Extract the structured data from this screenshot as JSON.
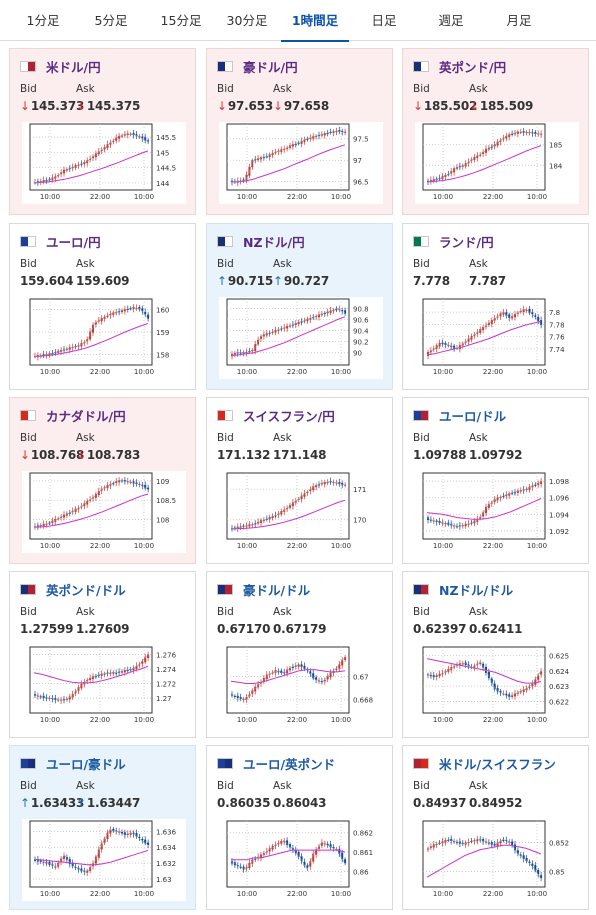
{
  "tabs": [
    {
      "label": "1分足"
    },
    {
      "label": "5分足"
    },
    {
      "label": "15分足"
    },
    {
      "label": "30分足"
    },
    {
      "label": "1時間足",
      "active": true
    },
    {
      "label": "日足"
    },
    {
      "label": "週足"
    },
    {
      "label": "月足"
    }
  ],
  "labels": {
    "bid": "Bid",
    "ask": "Ask"
  },
  "colors": {
    "accent": "#0a53a8",
    "down_card_bg": "#fceeee",
    "up_card_bg": "#e9f3fb",
    "candle_up": "#e0302a",
    "candle_down": "#1f3f9a",
    "ma_line": "#cc33cc",
    "short_ma": "#35b8b8"
  },
  "cards": [
    {
      "name": "米ドル/円",
      "flag": "flag-jp-us-icon",
      "state": "down",
      "bid": "145.373",
      "ask": "145.375",
      "chart": {
        "ticks": [
          "145.5",
          "145",
          "144.5",
          "144"
        ],
        "range": [
          143.9,
          145.8
        ],
        "times": [
          "10:00",
          "22:00",
          "10:00"
        ],
        "trend": [
          144.0,
          144.05,
          144.1,
          144.2,
          144.4,
          144.5,
          144.6,
          144.7,
          144.9,
          145.1,
          145.3,
          145.5,
          145.6,
          145.6,
          145.5,
          145.35
        ],
        "ma": [
          144.0,
          144.02,
          144.04,
          144.08,
          144.12,
          144.18,
          144.24,
          144.32,
          144.4,
          144.48,
          144.57,
          144.66,
          144.76,
          144.86,
          144.96,
          145.05
        ]
      }
    },
    {
      "name": "豪ドル/円",
      "flag": "flag-au-jp-icon",
      "state": "down",
      "bid": "97.653",
      "ask": "97.658",
      "chart": {
        "ticks": [
          "97.5",
          "97",
          "96.5"
        ],
        "range": [
          96.4,
          97.75
        ],
        "times": [
          "10:00",
          "22:00",
          "10:00"
        ],
        "trend": [
          96.5,
          96.5,
          96.55,
          97.0,
          97.05,
          97.1,
          97.2,
          97.25,
          97.35,
          97.4,
          97.5,
          97.55,
          97.6,
          97.65,
          97.68,
          97.65
        ],
        "ma": [
          96.5,
          96.5,
          96.52,
          96.56,
          96.62,
          96.68,
          96.74,
          96.8,
          96.88,
          96.95,
          97.02,
          97.1,
          97.17,
          97.24,
          97.3,
          97.36
        ]
      }
    },
    {
      "name": "英ポンド/円",
      "flag": "flag-uk-jp-icon",
      "state": "down",
      "bid": "185.502",
      "ask": "185.509",
      "chart": {
        "ticks": [
          "185",
          "184"
        ],
        "range": [
          183.0,
          185.8
        ],
        "times": [
          "10:00",
          "22:00",
          "10:00"
        ],
        "trend": [
          183.2,
          183.3,
          183.4,
          183.6,
          183.9,
          184.0,
          184.3,
          184.5,
          184.8,
          185.0,
          185.3,
          185.5,
          185.6,
          185.6,
          185.55,
          185.5
        ],
        "ma": [
          183.2,
          183.22,
          183.26,
          183.32,
          183.4,
          183.5,
          183.62,
          183.75,
          183.9,
          184.05,
          184.2,
          184.36,
          184.52,
          184.68,
          184.82,
          184.95
        ]
      }
    },
    {
      "name": "ユーロ/円",
      "flag": "flag-eu-jp-icon",
      "state": "flat",
      "bid": "159.604",
      "ask": "159.609",
      "chart": {
        "ticks": [
          "160",
          "159",
          "158"
        ],
        "range": [
          157.7,
          160.3
        ],
        "times": [
          "10:00",
          "22:00",
          "10:00"
        ],
        "trend": [
          157.9,
          157.95,
          158.0,
          158.1,
          158.2,
          158.3,
          158.4,
          158.6,
          159.4,
          159.6,
          159.8,
          159.9,
          160.0,
          160.1,
          160.05,
          159.6
        ],
        "ma": [
          157.9,
          157.92,
          157.95,
          158.0,
          158.06,
          158.13,
          158.2,
          158.3,
          158.42,
          158.56,
          158.7,
          158.85,
          159.0,
          159.14,
          159.27,
          159.38
        ]
      }
    },
    {
      "name": "NZドル/円",
      "flag": "flag-nz-jp-icon",
      "state": "up",
      "bid": "90.715",
      "ask": "90.727",
      "chart": {
        "ticks": [
          "90.8",
          "90.6",
          "90.4",
          "90.2",
          "90"
        ],
        "range": [
          89.85,
          90.9
        ],
        "times": [
          "10:00",
          "22:00",
          "10:00"
        ],
        "trend": [
          89.95,
          90.0,
          90.0,
          90.05,
          90.3,
          90.35,
          90.4,
          90.45,
          90.5,
          90.55,
          90.6,
          90.65,
          90.7,
          90.75,
          90.8,
          90.72
        ],
        "ma": [
          89.95,
          89.96,
          89.98,
          90.0,
          90.04,
          90.08,
          90.13,
          90.18,
          90.24,
          90.3,
          90.36,
          90.42,
          90.48,
          90.54,
          90.6,
          90.65
        ]
      }
    },
    {
      "name": "ランド/円",
      "flag": "flag-za-jp-icon",
      "state": "flat",
      "bid": "7.778",
      "ask": "7.787",
      "chart": {
        "ticks": [
          "7.8",
          "7.78",
          "7.76",
          "7.74"
        ],
        "range": [
          7.72,
          7.815
        ],
        "times": [
          "10:00",
          "22:00",
          "10:00"
        ],
        "trend": [
          7.73,
          7.74,
          7.75,
          7.745,
          7.74,
          7.75,
          7.76,
          7.77,
          7.78,
          7.79,
          7.8,
          7.79,
          7.8,
          7.805,
          7.795,
          7.78
        ],
        "ma": [
          7.73,
          7.732,
          7.735,
          7.738,
          7.741,
          7.744,
          7.748,
          7.752,
          7.756,
          7.761,
          7.766,
          7.771,
          7.775,
          7.779,
          7.782,
          7.785
        ]
      }
    },
    {
      "name": "カナダドル/円",
      "flag": "flag-ca-jp-icon",
      "state": "down",
      "bid": "108.768",
      "ask": "108.783",
      "chart": {
        "ticks": [
          "109",
          "108.5",
          "108"
        ],
        "range": [
          107.6,
          109.1
        ],
        "times": [
          "10:00",
          "22:00",
          "10:00"
        ],
        "trend": [
          107.8,
          107.85,
          107.9,
          108.0,
          108.1,
          108.2,
          108.3,
          108.45,
          108.6,
          108.8,
          108.9,
          109.0,
          109.0,
          108.95,
          108.9,
          108.78
        ],
        "ma": [
          107.8,
          107.81,
          107.83,
          107.86,
          107.9,
          107.95,
          108.0,
          108.06,
          108.13,
          108.2,
          108.28,
          108.36,
          108.44,
          108.52,
          108.6,
          108.66
        ]
      }
    },
    {
      "name": "スイスフラン/円",
      "flag": "flag-ch-jp-icon",
      "state": "flat",
      "bid": "171.132",
      "ask": "171.148",
      "chart": {
        "ticks": [
          "171",
          "170"
        ],
        "range": [
          169.5,
          171.4
        ],
        "times": [
          "10:00",
          "22:00",
          "10:00"
        ],
        "trend": [
          169.7,
          169.75,
          169.8,
          169.85,
          169.95,
          170.05,
          170.15,
          170.3,
          170.5,
          170.7,
          170.9,
          171.1,
          171.2,
          171.25,
          171.2,
          171.13
        ],
        "ma": [
          169.7,
          169.71,
          169.72,
          169.74,
          169.77,
          169.81,
          169.86,
          169.92,
          169.99,
          170.07,
          170.16,
          170.26,
          170.36,
          170.46,
          170.56,
          170.64
        ]
      }
    },
    {
      "name": "ユーロ/ドル",
      "flag": "flag-eu-us-icon",
      "state": "flat",
      "usd": true,
      "bid": "1.09788",
      "ask": "1.09792",
      "chart": {
        "ticks": [
          "1.098",
          "1.096",
          "1.094",
          "1.092"
        ],
        "range": [
          1.0915,
          1.0985
        ],
        "times": [
          "10:00",
          "22:00",
          "10:00"
        ],
        "trend": [
          1.0935,
          1.0932,
          1.093,
          1.0928,
          1.0925,
          1.0927,
          1.093,
          1.0935,
          1.095,
          1.0958,
          1.0962,
          1.0965,
          1.0968,
          1.097,
          1.0975,
          1.0979
        ],
        "ma": [
          1.0942,
          1.0941,
          1.094,
          1.0938,
          1.0936,
          1.0935,
          1.0934,
          1.0934,
          1.0935,
          1.0937,
          1.094,
          1.0943,
          1.0947,
          1.0951,
          1.0955,
          1.0959
        ]
      }
    },
    {
      "name": "英ポンド/ドル",
      "flag": "flag-uk-us-icon",
      "state": "flat",
      "usd": true,
      "bid": "1.27599",
      "ask": "1.27609",
      "chart": {
        "ticks": [
          "1.276",
          "1.274",
          "1.272",
          "1.27"
        ],
        "range": [
          1.2685,
          1.2765
        ],
        "times": [
          "10:00",
          "22:00",
          "10:00"
        ],
        "trend": [
          1.2705,
          1.2702,
          1.27,
          1.2698,
          1.2697,
          1.2702,
          1.2715,
          1.2725,
          1.273,
          1.2733,
          1.2735,
          1.2735,
          1.2738,
          1.274,
          1.2748,
          1.276
        ],
        "ma": [
          1.2735,
          1.2733,
          1.273,
          1.2727,
          1.2724,
          1.2722,
          1.2721,
          1.2721,
          1.2722,
          1.2724,
          1.2727,
          1.273,
          1.2733,
          1.2737,
          1.274,
          1.2744
        ]
      }
    },
    {
      "name": "豪ドル/ドル",
      "flag": "flag-au-us-icon",
      "state": "flat",
      "usd": true,
      "bid": "0.67170",
      "ask": "0.67179",
      "chart": {
        "ticks": [
          "0.67",
          "0.668"
        ],
        "range": [
          0.6672,
          0.6722
        ],
        "times": [
          "10:00",
          "22:00",
          "10:00"
        ],
        "trend": [
          0.6685,
          0.6682,
          0.668,
          0.6688,
          0.6695,
          0.6702,
          0.6705,
          0.6703,
          0.6708,
          0.671,
          0.6706,
          0.6698,
          0.6695,
          0.6702,
          0.6708,
          0.6717
        ],
        "ma": [
          0.6696,
          0.6695,
          0.6694,
          0.6694,
          0.6695,
          0.6697,
          0.6699,
          0.6701,
          0.6703,
          0.6705,
          0.6706,
          0.6706,
          0.6705,
          0.6704,
          0.6704,
          0.6705
        ]
      }
    },
    {
      "name": "NZドル/ドル",
      "flag": "flag-nz-us-icon",
      "state": "flat",
      "usd": true,
      "bid": "0.62397",
      "ask": "0.62411",
      "chart": {
        "ticks": [
          "0.625",
          "0.624",
          "0.623",
          "0.622"
        ],
        "range": [
          0.6215,
          0.6253
        ],
        "times": [
          "10:00",
          "22:00",
          "10:00"
        ],
        "trend": [
          0.6238,
          0.6236,
          0.6238,
          0.6241,
          0.6244,
          0.6245,
          0.6242,
          0.6246,
          0.6238,
          0.6228,
          0.6225,
          0.6223,
          0.6226,
          0.6228,
          0.6232,
          0.624
        ],
        "ma": [
          0.6248,
          0.6247,
          0.6246,
          0.6245,
          0.6244,
          0.6243,
          0.6242,
          0.6241,
          0.624,
          0.6239,
          0.6237,
          0.6235,
          0.6233,
          0.6232,
          0.6232,
          0.6233
        ]
      }
    },
    {
      "name": "ユーロ/豪ドル",
      "flag": "flag-eu-au-icon",
      "state": "up",
      "usd": true,
      "bid": "1.63433",
      "ask": "1.63447",
      "chart": {
        "ticks": [
          "1.636",
          "1.634",
          "1.632",
          "1.63"
        ],
        "range": [
          1.6295,
          1.6368
        ],
        "times": [
          "10:00",
          "22:00",
          "10:00"
        ],
        "trend": [
          1.6325,
          1.6322,
          1.632,
          1.6315,
          1.633,
          1.6318,
          1.6312,
          1.6308,
          1.6322,
          1.6345,
          1.6362,
          1.636,
          1.6356,
          1.6358,
          1.635,
          1.6343
        ],
        "ma": [
          1.6325,
          1.6324,
          1.6323,
          1.6322,
          1.6321,
          1.632,
          1.6319,
          1.6318,
          1.6318,
          1.6319,
          1.6321,
          1.6324,
          1.6327,
          1.633,
          1.6333,
          1.6336
        ]
      }
    },
    {
      "name": "ユーロ/英ポンド",
      "flag": "flag-eu-uk-icon",
      "state": "flat",
      "usd": true,
      "bid": "0.86035",
      "ask": "0.86043",
      "chart": {
        "ticks": [
          "0.862",
          "0.861",
          "0.86"
        ],
        "range": [
          0.8594,
          0.8624
        ],
        "times": [
          "10:00",
          "22:00",
          "10:00"
        ],
        "trend": [
          0.8605,
          0.8603,
          0.8601,
          0.8606,
          0.8608,
          0.8611,
          0.8614,
          0.8616,
          0.8612,
          0.8608,
          0.8601,
          0.861,
          0.8615,
          0.8613,
          0.8611,
          0.8604
        ],
        "ma": [
          0.8606,
          0.8606,
          0.8606,
          0.8607,
          0.8607,
          0.8608,
          0.8609,
          0.861,
          0.8611,
          0.8611,
          0.8611,
          0.8611,
          0.8611,
          0.8611,
          0.8611,
          0.861
        ]
      }
    },
    {
      "name": "米ドル/スイスフラン",
      "flag": "flag-us-ch-icon",
      "state": "flat",
      "usd": true,
      "bid": "0.84937",
      "ask": "0.84952",
      "chart": {
        "ticks": [
          "0.852",
          "0.85"
        ],
        "range": [
          0.8492,
          0.8532
        ],
        "times": [
          "10:00",
          "22:00",
          "10:00"
        ],
        "trend": [
          0.8515,
          0.8518,
          0.852,
          0.8522,
          0.852,
          0.8519,
          0.8521,
          0.8522,
          0.852,
          0.8518,
          0.8522,
          0.852,
          0.8512,
          0.8508,
          0.8503,
          0.8495
        ],
        "ma": [
          0.8496,
          0.8499,
          0.8502,
          0.8505,
          0.8508,
          0.8511,
          0.8513,
          0.8515,
          0.8516,
          0.8517,
          0.8518,
          0.8518,
          0.8517,
          0.8516,
          0.8514,
          0.8512
        ]
      }
    }
  ]
}
